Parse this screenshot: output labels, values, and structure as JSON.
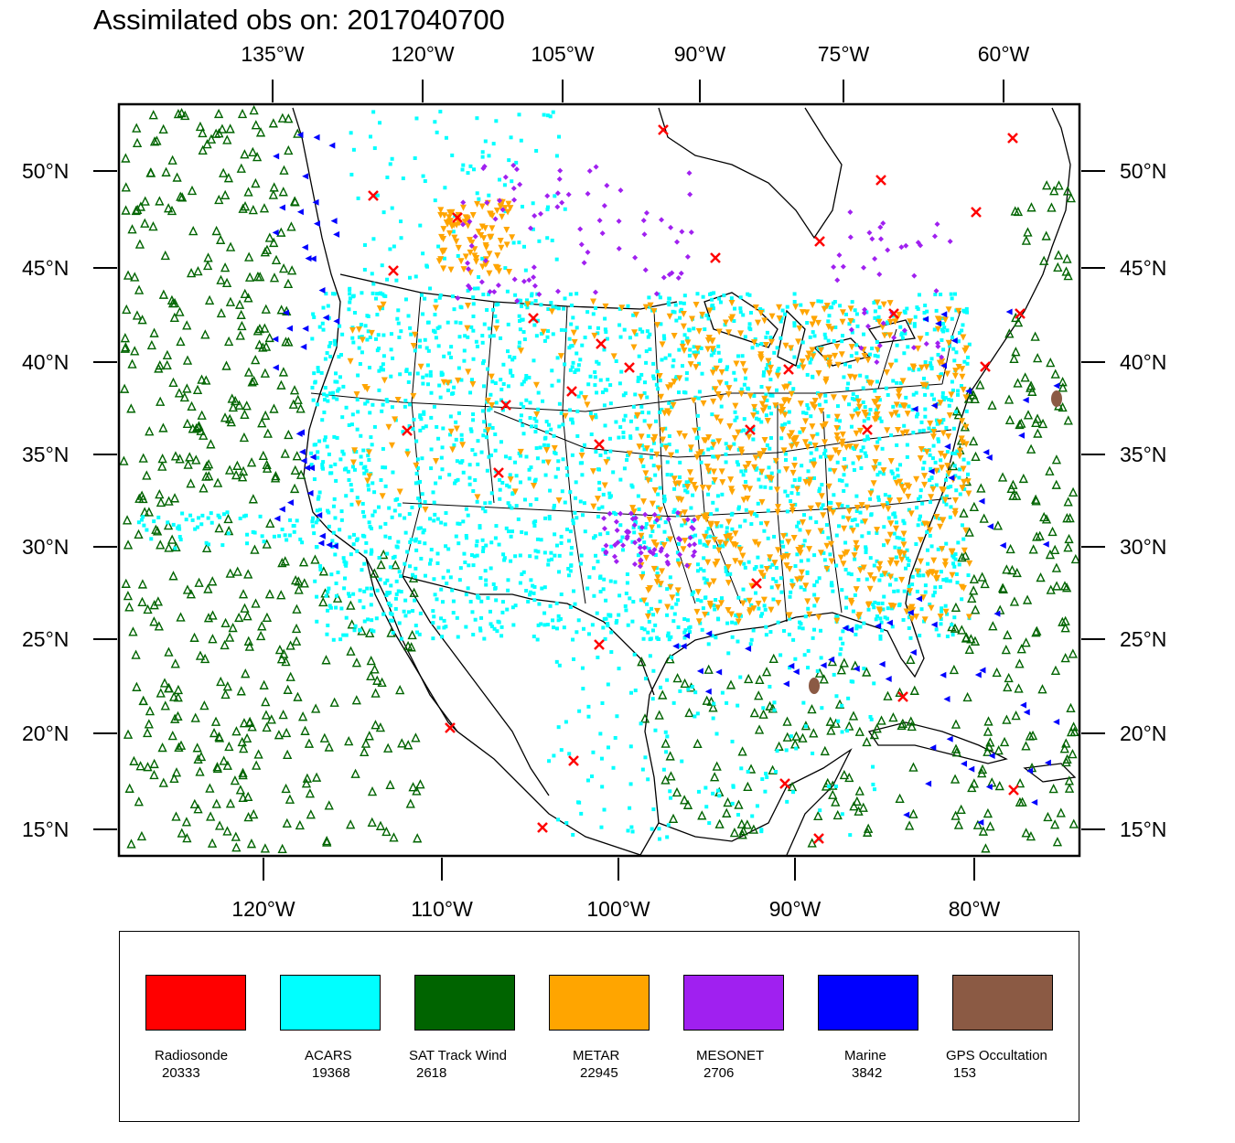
{
  "title": "Assimilated obs on: 2017040700",
  "map": {
    "top_lon_labels": [
      "135°W",
      "120°W",
      "105°W",
      "90°W",
      "75°W",
      "60°W"
    ],
    "bottom_lon_labels": [
      "120°W",
      "110°W",
      "100°W",
      "90°W",
      "80°W"
    ],
    "lat_labels": [
      "50°N",
      "45°N",
      "40°N",
      "35°N",
      "30°N",
      "25°N",
      "20°N",
      "15°N"
    ]
  },
  "legend": {
    "items": [
      {
        "name": "Radiosonde",
        "count": "20333",
        "color": "#ff0000",
        "marker": "x-icon"
      },
      {
        "name": "ACARS",
        "count": "19368",
        "color": "#00ffff",
        "marker": "square-icon"
      },
      {
        "name": "SAT Track Wind",
        "count": "2618",
        "color": "#006400",
        "marker": "triangle-up-icon"
      },
      {
        "name": "METAR",
        "count": "22945",
        "color": "#ffa500",
        "marker": "triangle-down-icon"
      },
      {
        "name": "MESONET",
        "count": "2706",
        "color": "#a020f0",
        "marker": "diamond-icon"
      },
      {
        "name": "Marine",
        "count": "3842",
        "color": "#0000ff",
        "marker": "triangle-left-icon"
      },
      {
        "name": "GPS Occultation",
        "count": "153",
        "color": "#8b5a44",
        "marker": "blob-icon"
      }
    ]
  }
}
